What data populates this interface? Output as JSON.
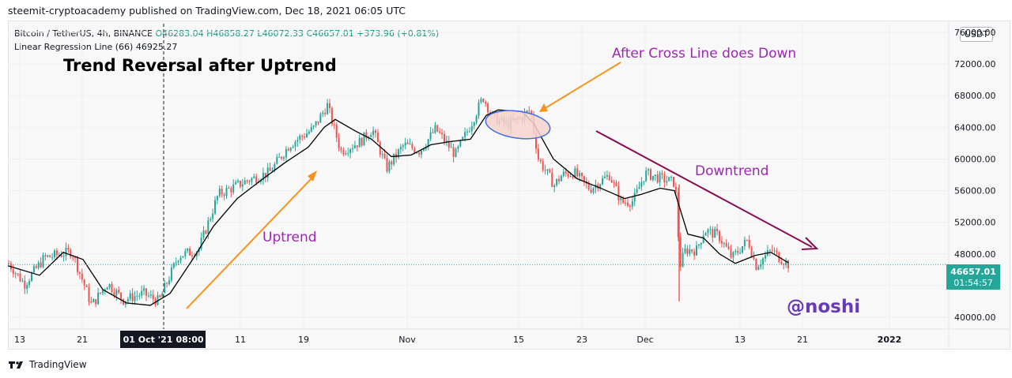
{
  "publish_line": "steemit-cryptoacademy published on TradingView.com, Dec 18, 2021 06:05 UTC",
  "legend": {
    "symbol": "Bitcoin / TetherUS, 4h, BINANCE",
    "ohlc": "O46283.04 H46858.27 L46072.33 C46657.01 +373.96 (+0.81%)",
    "indicator": "Linear Regression Line (66) 46925.27"
  },
  "currency_button": "USDT",
  "footer_brand": "TradingView",
  "chart_data": {
    "type": "candlestick",
    "y_ticks": [
      "76000.00",
      "72000.00",
      "68000.00",
      "64000.00",
      "60000.00",
      "56000.00",
      "52000.00",
      "48000.00",
      "44000.00",
      "40000.00"
    ],
    "ylim": [
      38500,
      77500
    ],
    "x_ticks": [
      "13",
      "21",
      "01 Oct '21",
      "08:00",
      "11",
      "19",
      "Nov",
      "15",
      "23",
      "Dec",
      "13",
      "21",
      "2022"
    ],
    "last_price_label": "46657.01",
    "countdown_label": "01:54:57",
    "anchors": [
      {
        "x": 0,
        "y": 46800
      },
      {
        "x": 20,
        "y": 44200
      },
      {
        "x": 45,
        "y": 47500
      },
      {
        "x": 80,
        "y": 48300
      },
      {
        "x": 105,
        "y": 41500
      },
      {
        "x": 125,
        "y": 44300
      },
      {
        "x": 145,
        "y": 42200
      },
      {
        "x": 170,
        "y": 43000
      },
      {
        "x": 190,
        "y": 42000
      },
      {
        "x": 205,
        "y": 45500
      },
      {
        "x": 215,
        "y": 47800
      },
      {
        "x": 240,
        "y": 48500
      },
      {
        "x": 265,
        "y": 55500
      },
      {
        "x": 300,
        "y": 57200
      },
      {
        "x": 330,
        "y": 58300
      },
      {
        "x": 355,
        "y": 61800
      },
      {
        "x": 385,
        "y": 63800
      },
      {
        "x": 403,
        "y": 66800
      },
      {
        "x": 420,
        "y": 61000
      },
      {
        "x": 445,
        "y": 62200
      },
      {
        "x": 460,
        "y": 63800
      },
      {
        "x": 478,
        "y": 58800
      },
      {
        "x": 500,
        "y": 61800
      },
      {
        "x": 520,
        "y": 61000
      },
      {
        "x": 540,
        "y": 63800
      },
      {
        "x": 565,
        "y": 60500
      },
      {
        "x": 585,
        "y": 64500
      },
      {
        "x": 600,
        "y": 67800
      },
      {
        "x": 613,
        "y": 65200
      },
      {
        "x": 630,
        "y": 64300
      },
      {
        "x": 645,
        "y": 65000
      },
      {
        "x": 660,
        "y": 66200
      },
      {
        "x": 670,
        "y": 60000
      },
      {
        "x": 690,
        "y": 56700
      },
      {
        "x": 700,
        "y": 58000
      },
      {
        "x": 715,
        "y": 58300
      },
      {
        "x": 735,
        "y": 56200
      },
      {
        "x": 760,
        "y": 58000
      },
      {
        "x": 775,
        "y": 54500
      },
      {
        "x": 790,
        "y": 54700
      },
      {
        "x": 805,
        "y": 58200
      },
      {
        "x": 825,
        "y": 57500
      },
      {
        "x": 843,
        "y": 57000
      },
      {
        "x": 849,
        "y": 46500
      },
      {
        "x": 856,
        "y": 48500
      },
      {
        "x": 870,
        "y": 48500
      },
      {
        "x": 880,
        "y": 51000
      },
      {
        "x": 898,
        "y": 50300
      },
      {
        "x": 915,
        "y": 47500
      },
      {
        "x": 935,
        "y": 49800
      },
      {
        "x": 945,
        "y": 46500
      },
      {
        "x": 965,
        "y": 48500
      },
      {
        "x": 975,
        "y": 47500
      },
      {
        "x": 987,
        "y": 46650
      }
    ],
    "regression_line": [
      {
        "x": 0,
        "y": 46500
      },
      {
        "x": 40,
        "y": 45300
      },
      {
        "x": 70,
        "y": 48200
      },
      {
        "x": 95,
        "y": 47300
      },
      {
        "x": 120,
        "y": 43500
      },
      {
        "x": 150,
        "y": 41800
      },
      {
        "x": 180,
        "y": 41500
      },
      {
        "x": 205,
        "y": 43000
      },
      {
        "x": 235,
        "y": 47500
      },
      {
        "x": 260,
        "y": 51500
      },
      {
        "x": 290,
        "y": 55000
      },
      {
        "x": 320,
        "y": 57300
      },
      {
        "x": 350,
        "y": 59500
      },
      {
        "x": 380,
        "y": 61500
      },
      {
        "x": 400,
        "y": 64000
      },
      {
        "x": 414,
        "y": 65000
      },
      {
        "x": 440,
        "y": 63500
      },
      {
        "x": 460,
        "y": 62500
      },
      {
        "x": 485,
        "y": 60300
      },
      {
        "x": 510,
        "y": 60500
      },
      {
        "x": 535,
        "y": 61800
      },
      {
        "x": 560,
        "y": 62200
      },
      {
        "x": 585,
        "y": 62500
      },
      {
        "x": 605,
        "y": 65500
      },
      {
        "x": 620,
        "y": 66200
      },
      {
        "x": 650,
        "y": 66000
      },
      {
        "x": 665,
        "y": 64500
      },
      {
        "x": 690,
        "y": 60000
      },
      {
        "x": 720,
        "y": 57500
      },
      {
        "x": 750,
        "y": 56300
      },
      {
        "x": 780,
        "y": 55000
      },
      {
        "x": 800,
        "y": 55500
      },
      {
        "x": 825,
        "y": 56300
      },
      {
        "x": 843,
        "y": 56000
      },
      {
        "x": 860,
        "y": 50500
      },
      {
        "x": 880,
        "y": 50000
      },
      {
        "x": 900,
        "y": 48000
      },
      {
        "x": 920,
        "y": 46800
      },
      {
        "x": 945,
        "y": 47800
      },
      {
        "x": 965,
        "y": 48200
      },
      {
        "x": 987,
        "y": 46900
      }
    ],
    "annotations": {
      "title": "Trend Reversal after Uptrend",
      "cross_label": "After Cross Line does Down",
      "uptrend_label": "Uptrend",
      "downtrend_label": "Downtrend",
      "author": "@noshi"
    },
    "colors": {
      "up": "#26a69a",
      "down": "#ef5350",
      "regression": "#000000",
      "orange_arrow": "#f7931a",
      "purple_text": "#9c27b0",
      "maroon_arrow": "#880e4f",
      "author": "#673ab7",
      "ellipse_stroke": "#3f6fde",
      "ellipse_fill": "#f7d3ce"
    }
  }
}
